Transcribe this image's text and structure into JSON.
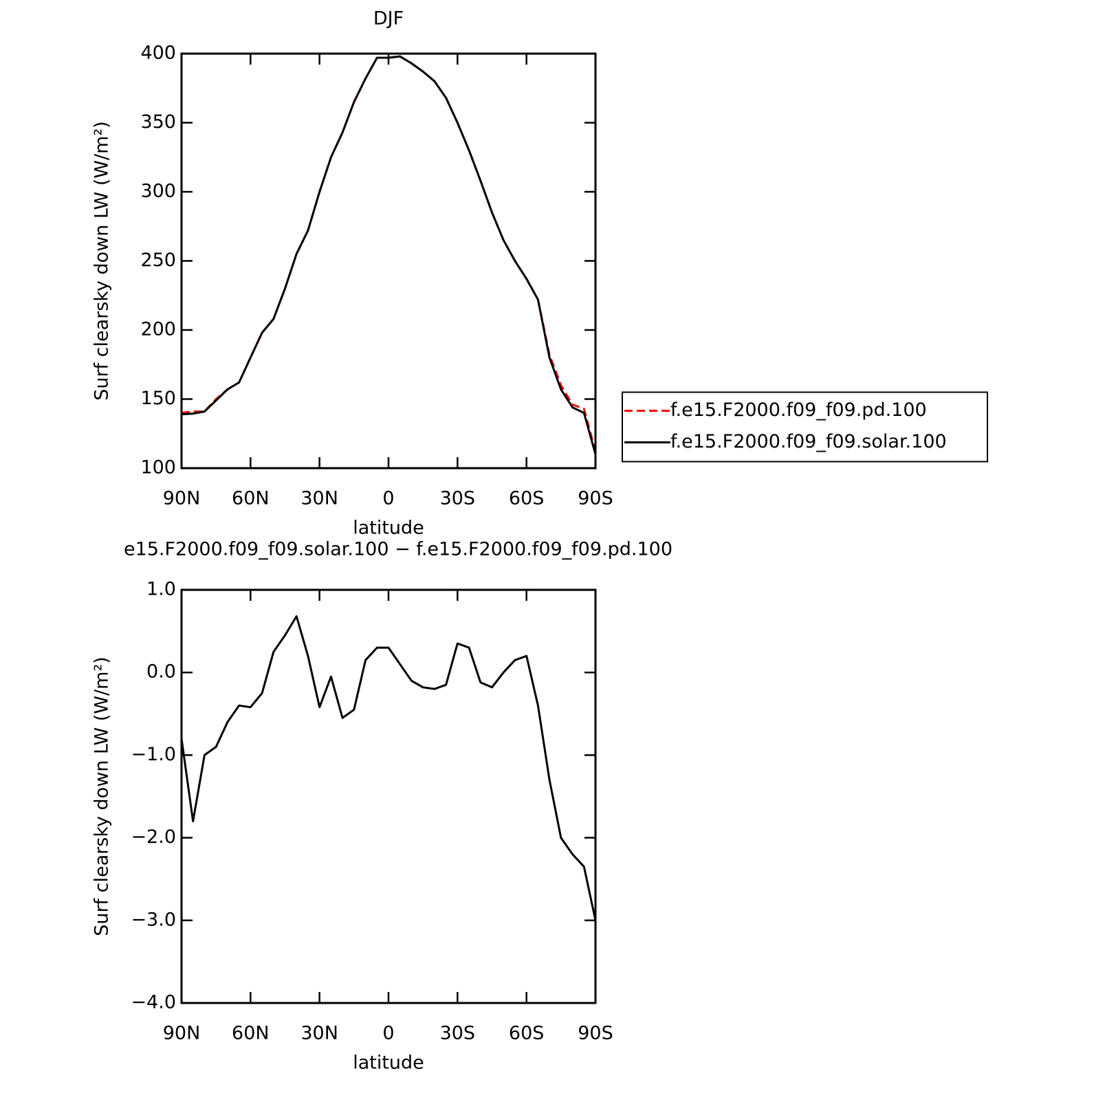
{
  "chart_data": [
    {
      "type": "line",
      "title": "DJF",
      "xlabel": "latitude",
      "ylabel": "Surf clearsky down LW (W/m²)",
      "x": [
        90,
        85,
        80,
        75,
        70,
        65,
        60,
        55,
        50,
        45,
        40,
        35,
        30,
        25,
        20,
        15,
        10,
        5,
        0,
        -5,
        -10,
        -15,
        -20,
        -25,
        -30,
        -35,
        -40,
        -45,
        -50,
        -55,
        -60,
        -65,
        -70,
        -75,
        -80,
        -85,
        -90
      ],
      "series": [
        {
          "name": "f.e15.F2000.f09_f09.pd.100",
          "color": "#ff0000",
          "linestyle": "dashed",
          "values": [
            140,
            141,
            141,
            150,
            157,
            162,
            180,
            198,
            208,
            230,
            255,
            272,
            300,
            325,
            343,
            365,
            382,
            397,
            397,
            398,
            393,
            387,
            380,
            368,
            350,
            330,
            308,
            285,
            265,
            250,
            237,
            222,
            182,
            160,
            146,
            143,
            112
          ]
        },
        {
          "name": "f.e15.F2000.f09_f09.solar.100",
          "color": "#000000",
          "linestyle": "solid",
          "values": [
            139,
            139.5,
            141,
            149,
            157,
            162,
            180,
            198,
            208,
            230,
            255,
            272,
            300,
            325,
            343,
            365,
            382,
            397,
            397,
            398,
            393,
            387,
            380,
            368,
            350,
            330,
            308,
            285,
            265,
            250,
            237,
            222,
            180,
            157,
            144,
            140,
            110
          ]
        }
      ],
      "xlim": [
        90,
        -90
      ],
      "xticks": [
        {
          "value": 90,
          "label": "90N"
        },
        {
          "value": 60,
          "label": "60N"
        },
        {
          "value": 30,
          "label": "30N"
        },
        0,
        {
          "value": -30,
          "label": "30S"
        },
        {
          "value": -60,
          "label": "60S"
        },
        {
          "value": -90,
          "label": "90S"
        }
      ],
      "ylim": [
        100,
        400
      ],
      "yticks": [
        100,
        150,
        200,
        250,
        300,
        350,
        400
      ],
      "legend": "right"
    },
    {
      "type": "line",
      "title": "e15.F2000.f09_f09.solar.100 − f.e15.F2000.f09_f09.pd.100",
      "xlabel": "latitude",
      "ylabel": "Surf clearsky down LW (W/m²)",
      "x": [
        90,
        85,
        80,
        75,
        70,
        65,
        60,
        55,
        50,
        45,
        40,
        35,
        30,
        25,
        20,
        15,
        10,
        5,
        0,
        -5,
        -10,
        -15,
        -20,
        -25,
        -30,
        -35,
        -40,
        -45,
        -50,
        -55,
        -60,
        -65,
        -70,
        -75,
        -80,
        -85,
        -90
      ],
      "series": [
        {
          "color": "#000000",
          "linestyle": "solid",
          "values": [
            -0.8,
            -1.8,
            -1.0,
            -0.9,
            -0.6,
            -0.4,
            -0.42,
            -0.25,
            0.25,
            0.45,
            0.68,
            0.2,
            -0.42,
            -0.05,
            -0.55,
            -0.45,
            0.15,
            0.3,
            0.3,
            0.1,
            -0.1,
            -0.18,
            -0.2,
            -0.15,
            0.35,
            0.3,
            -0.12,
            -0.18,
            0.0,
            0.15,
            0.2,
            -0.4,
            -1.3,
            -2.0,
            -2.2,
            -2.35,
            -3.0
          ]
        }
      ],
      "xlim": [
        90,
        -90
      ],
      "xticks": [
        {
          "value": 90,
          "label": "90N"
        },
        {
          "value": 60,
          "label": "60N"
        },
        {
          "value": 30,
          "label": "30N"
        },
        0,
        {
          "value": -30,
          "label": "30S"
        },
        {
          "value": -60,
          "label": "60S"
        },
        {
          "value": -90,
          "label": "90S"
        }
      ],
      "ylim": [
        -4,
        1
      ],
      "yticks": [
        {
          "value": -4,
          "label": "−4.0"
        },
        {
          "value": -3,
          "label": "−3.0"
        },
        {
          "value": -2,
          "label": "−2.0"
        },
        {
          "value": -1,
          "label": "−1.0"
        },
        {
          "value": 0,
          "label": "0.0"
        },
        {
          "value": 1,
          "label": "1.0"
        }
      ]
    }
  ]
}
